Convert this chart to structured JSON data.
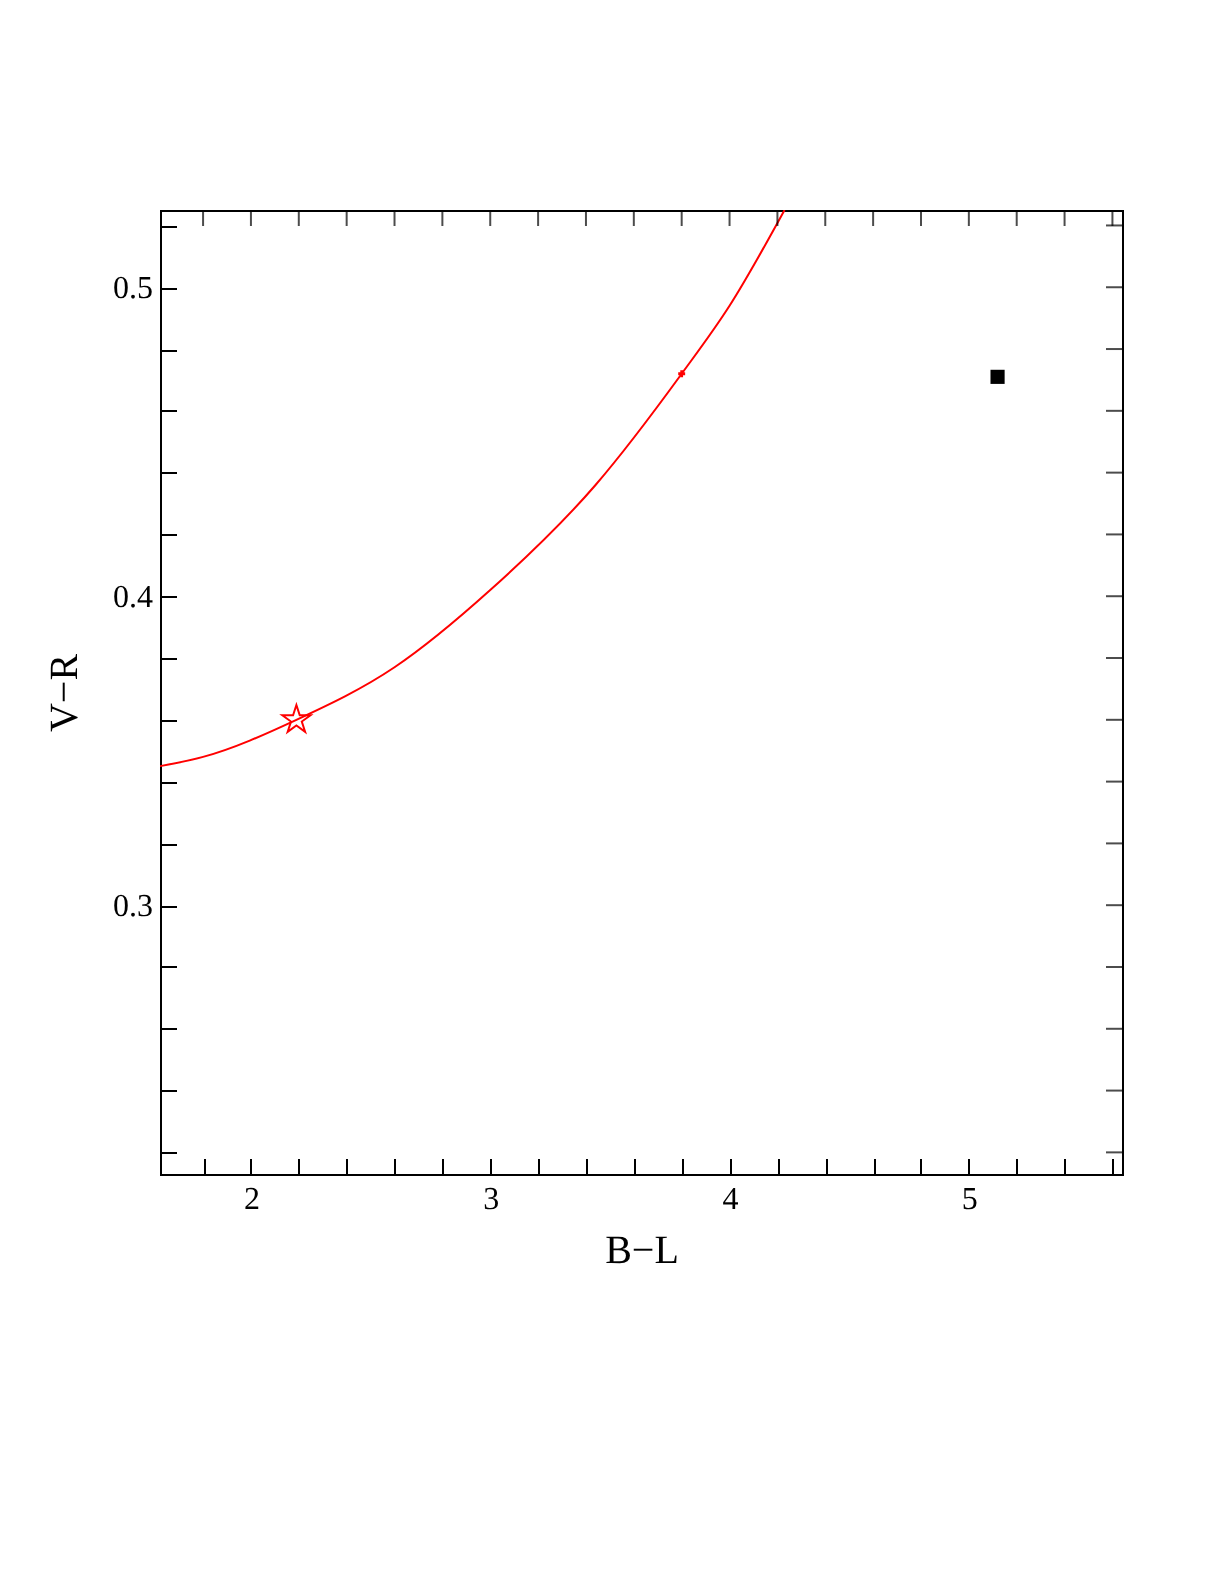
{
  "chart_data": {
    "type": "line",
    "xlabel": "B−L",
    "ylabel": "V−R",
    "xlim": [
      1.62,
      5.64
    ],
    "ylim": [
      0.213,
      0.525
    ],
    "xticks": [
      {
        "value": 1.8,
        "label": null
      },
      2,
      {
        "value": 2.2,
        "label": null
      },
      {
        "value": 2.4,
        "label": null
      },
      {
        "value": 2.6,
        "label": null
      },
      {
        "value": 2.8,
        "label": null
      },
      3,
      {
        "value": 3.2,
        "label": null
      },
      {
        "value": 3.4,
        "label": null
      },
      {
        "value": 3.6,
        "label": null
      },
      {
        "value": 3.8,
        "label": null
      },
      4,
      {
        "value": 4.2,
        "label": null
      },
      {
        "value": 4.4,
        "label": null
      },
      {
        "value": 4.6,
        "label": null
      },
      {
        "value": 4.8,
        "label": null
      },
      5,
      {
        "value": 5.2,
        "label": null
      },
      {
        "value": 5.4,
        "label": null
      },
      {
        "value": 5.6,
        "label": null
      }
    ],
    "yticks": [
      {
        "value": 0.22,
        "label": null
      },
      {
        "value": 0.24,
        "label": null
      },
      {
        "value": 0.26,
        "label": null
      },
      {
        "value": 0.28,
        "label": null
      },
      0.3,
      {
        "value": 0.32,
        "label": null
      },
      {
        "value": 0.34,
        "label": null
      },
      {
        "value": 0.36,
        "label": null
      },
      {
        "value": 0.38,
        "label": null
      },
      0.4,
      {
        "value": 0.42,
        "label": null
      },
      {
        "value": 0.44,
        "label": null
      },
      {
        "value": 0.46,
        "label": null
      },
      {
        "value": 0.48,
        "label": null
      },
      0.5,
      {
        "value": 0.52,
        "label": null
      }
    ],
    "grid": false,
    "series": [
      {
        "type": "line",
        "color": "#ff0000",
        "x": [
          1.62,
          1.8,
          2.19,
          2.6,
          3.0,
          3.44,
          3.8,
          4.0,
          4.23
        ],
        "values": [
          0.345,
          0.348,
          0.36,
          0.377,
          0.402,
          0.436,
          0.472,
          0.494,
          0.525
        ],
        "line_style": "solid",
        "marker": "none"
      },
      {
        "type": "scatter",
        "color": "#ff0000",
        "x": [
          2.19
        ],
        "values": [
          0.36
        ],
        "marker": "star"
      },
      {
        "type": "scatter",
        "color": "#ff0000",
        "x": [
          3.8
        ],
        "values": [
          0.472
        ],
        "marker": "cross"
      },
      {
        "type": "scatter",
        "color": "#000000",
        "x": [
          5.12
        ],
        "values": [
          0.471
        ],
        "marker": "square"
      }
    ]
  }
}
